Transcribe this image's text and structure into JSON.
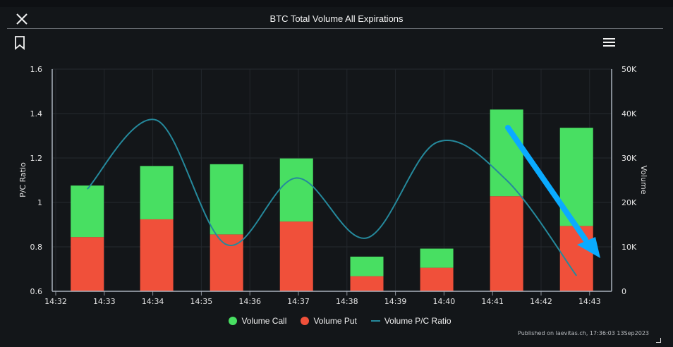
{
  "header": {
    "title": "BTC Total Volume All Expirations",
    "close_icon": "close-icon",
    "bookmark_icon": "bookmark-icon",
    "menu_icon": "hamburger-menu-icon"
  },
  "credit": "Published on laevitas.ch, 17:36:03 13Sep2023",
  "chart_data": {
    "type": "bar",
    "title": "BTC Total Volume All Expirations",
    "xlabel": "",
    "x_ticks": [
      "14:32",
      "14:33",
      "14:34",
      "14:35",
      "14:36",
      "14:37",
      "14:38",
      "14:39",
      "14:40",
      "14:41",
      "14:42",
      "14:43"
    ],
    "x_range_minutes_after_1432": [
      -0.07,
      11.45
    ],
    "bar_x_minutes_after_1432": [
      0.65,
      2.08,
      3.52,
      4.96,
      6.41,
      7.85,
      9.29,
      10.73
    ],
    "y_left": {
      "label": "P/C Ratio",
      "range": [
        0.6,
        1.6
      ],
      "ticks": [
        "0.6",
        "0.8",
        "1",
        "1.2",
        "1.4",
        "1.6"
      ],
      "tick_values": [
        0.6,
        0.8,
        1.0,
        1.2,
        1.4,
        1.6
      ]
    },
    "y_right": {
      "label": "Volume",
      "range": [
        0,
        50000
      ],
      "ticks": [
        "0",
        "10K",
        "20K",
        "30K",
        "40K",
        "50K"
      ],
      "tick_values": [
        0,
        10000,
        20000,
        30000,
        40000,
        50000
      ]
    },
    "grid": true,
    "legend_position": "bottom",
    "series": [
      {
        "name": "Volume Put",
        "type": "stacked-bar",
        "axis": "right",
        "color": "#f0503a",
        "values": [
          12200,
          16200,
          12800,
          15700,
          3400,
          5300,
          21400,
          14700
        ]
      },
      {
        "name": "Volume Call",
        "type": "stacked-bar",
        "axis": "right",
        "color": "#48df62",
        "values": [
          11600,
          12000,
          15800,
          14200,
          4400,
          4300,
          19500,
          22100
        ]
      },
      {
        "name": "Volume P/C Ratio",
        "type": "line",
        "axis": "left",
        "color": "#25899c",
        "smooth": true,
        "values": [
          1.06,
          1.37,
          0.81,
          1.11,
          0.84,
          1.27,
          1.1,
          0.67
        ]
      }
    ],
    "legend": [
      {
        "label": "Volume Call",
        "color": "#48df62",
        "marker": "circle"
      },
      {
        "label": "Volume Put",
        "color": "#f0503a",
        "marker": "circle"
      },
      {
        "label": "Volume P/C Ratio",
        "color": "#25899c",
        "marker": "line"
      }
    ],
    "annotation": {
      "type": "arrow",
      "description": "blue downward arrow over last two bars",
      "color": "#0aabff"
    }
  }
}
